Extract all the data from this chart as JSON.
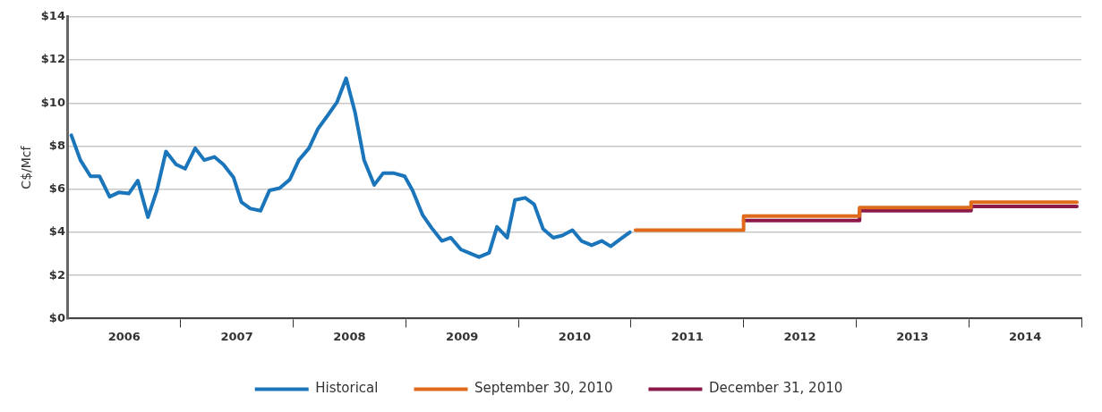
{
  "chart_data": {
    "type": "line",
    "ylabel": "C$/Mcf",
    "xlim": [
      2006,
      2015
    ],
    "xticks": [
      {
        "value": 2006.5,
        "label": "2006"
      },
      {
        "value": 2007,
        "label": null
      },
      {
        "value": 2007.5,
        "label": "2007"
      },
      {
        "value": 2008,
        "label": null
      },
      {
        "value": 2008.5,
        "label": "2008"
      },
      {
        "value": 2009,
        "label": null
      },
      {
        "value": 2009.5,
        "label": "2009"
      },
      {
        "value": 2010,
        "label": null
      },
      {
        "value": 2010.5,
        "label": "2010"
      },
      {
        "value": 2011,
        "label": null
      },
      {
        "value": 2011.5,
        "label": "2011"
      },
      {
        "value": 2012,
        "label": null
      },
      {
        "value": 2012.5,
        "label": "2012"
      },
      {
        "value": 2013,
        "label": null
      },
      {
        "value": 2013.5,
        "label": "2013"
      },
      {
        "value": 2014,
        "label": null
      },
      {
        "value": 2014.5,
        "label": "2014"
      },
      {
        "value": 2015,
        "label": null
      }
    ],
    "ylim": [
      0,
      14
    ],
    "yticks": [
      {
        "value": 0,
        "label": "$0"
      },
      {
        "value": 2,
        "label": "$2"
      },
      {
        "value": 4,
        "label": "$4"
      },
      {
        "value": 6,
        "label": "$6"
      },
      {
        "value": 8,
        "label": "$8"
      },
      {
        "value": 10,
        "label": "$10"
      },
      {
        "value": 12,
        "label": "$12"
      },
      {
        "value": 14,
        "label": "$14"
      }
    ],
    "grid": "y",
    "legend": "bottom",
    "marker": "none",
    "line_style": "solid",
    "series": [
      {
        "name": "Historical",
        "color": "#1a75bb",
        "x": [
          2006.03,
          2006.11,
          2006.2,
          2006.28,
          2006.37,
          2006.45,
          2006.54,
          2006.62,
          2006.71,
          2006.79,
          2006.87,
          2006.96,
          2007.04,
          2007.13,
          2007.21,
          2007.3,
          2007.38,
          2007.47,
          2007.54,
          2007.62,
          2007.71,
          2007.79,
          2007.88,
          2007.97,
          2008.05,
          2008.14,
          2008.22,
          2008.31,
          2008.39,
          2008.47,
          2008.55,
          2008.63,
          2008.72,
          2008.8,
          2008.89,
          2008.99,
          2009.06,
          2009.15,
          2009.23,
          2009.32,
          2009.4,
          2009.49,
          2009.56,
          2009.65,
          2009.74,
          2009.81,
          2009.9,
          2009.97,
          2010.06,
          2010.14,
          2010.22,
          2010.31,
          2010.39,
          2010.48,
          2010.56,
          2010.65,
          2010.74,
          2010.82,
          2010.91,
          2010.99
        ],
        "values": [
          8.5,
          7.35,
          6.6,
          6.6,
          5.65,
          5.85,
          5.8,
          6.4,
          4.7,
          5.95,
          7.75,
          7.15,
          6.95,
          7.9,
          7.35,
          7.5,
          7.15,
          6.55,
          5.4,
          5.1,
          5.0,
          5.95,
          6.05,
          6.45,
          7.35,
          7.9,
          8.8,
          9.45,
          10.05,
          11.15,
          9.55,
          7.35,
          6.2,
          6.75,
          6.75,
          6.6,
          5.95,
          4.8,
          4.2,
          3.6,
          3.75,
          3.2,
          3.05,
          2.85,
          3.05,
          4.25,
          3.75,
          5.5,
          5.6,
          5.3,
          4.15,
          3.75,
          3.85,
          4.1,
          3.6,
          3.4,
          3.6,
          3.35,
          3.7,
          4.0
        ]
      },
      {
        "name": "September 30, 2010",
        "type": "step",
        "color": "#e06a1b",
        "x": [
          2011.04,
          2012.0,
          2013.03,
          2014.02,
          2014.96
        ],
        "values": [
          4.1,
          4.75,
          5.15,
          5.4,
          5.4
        ]
      },
      {
        "name": "December 31, 2010",
        "type": "step",
        "color": "#8b1a4a",
        "x": [
          2012.0,
          2013.03,
          2014.02,
          2014.96
        ],
        "values": [
          4.55,
          5.0,
          5.2,
          5.2
        ]
      }
    ]
  }
}
